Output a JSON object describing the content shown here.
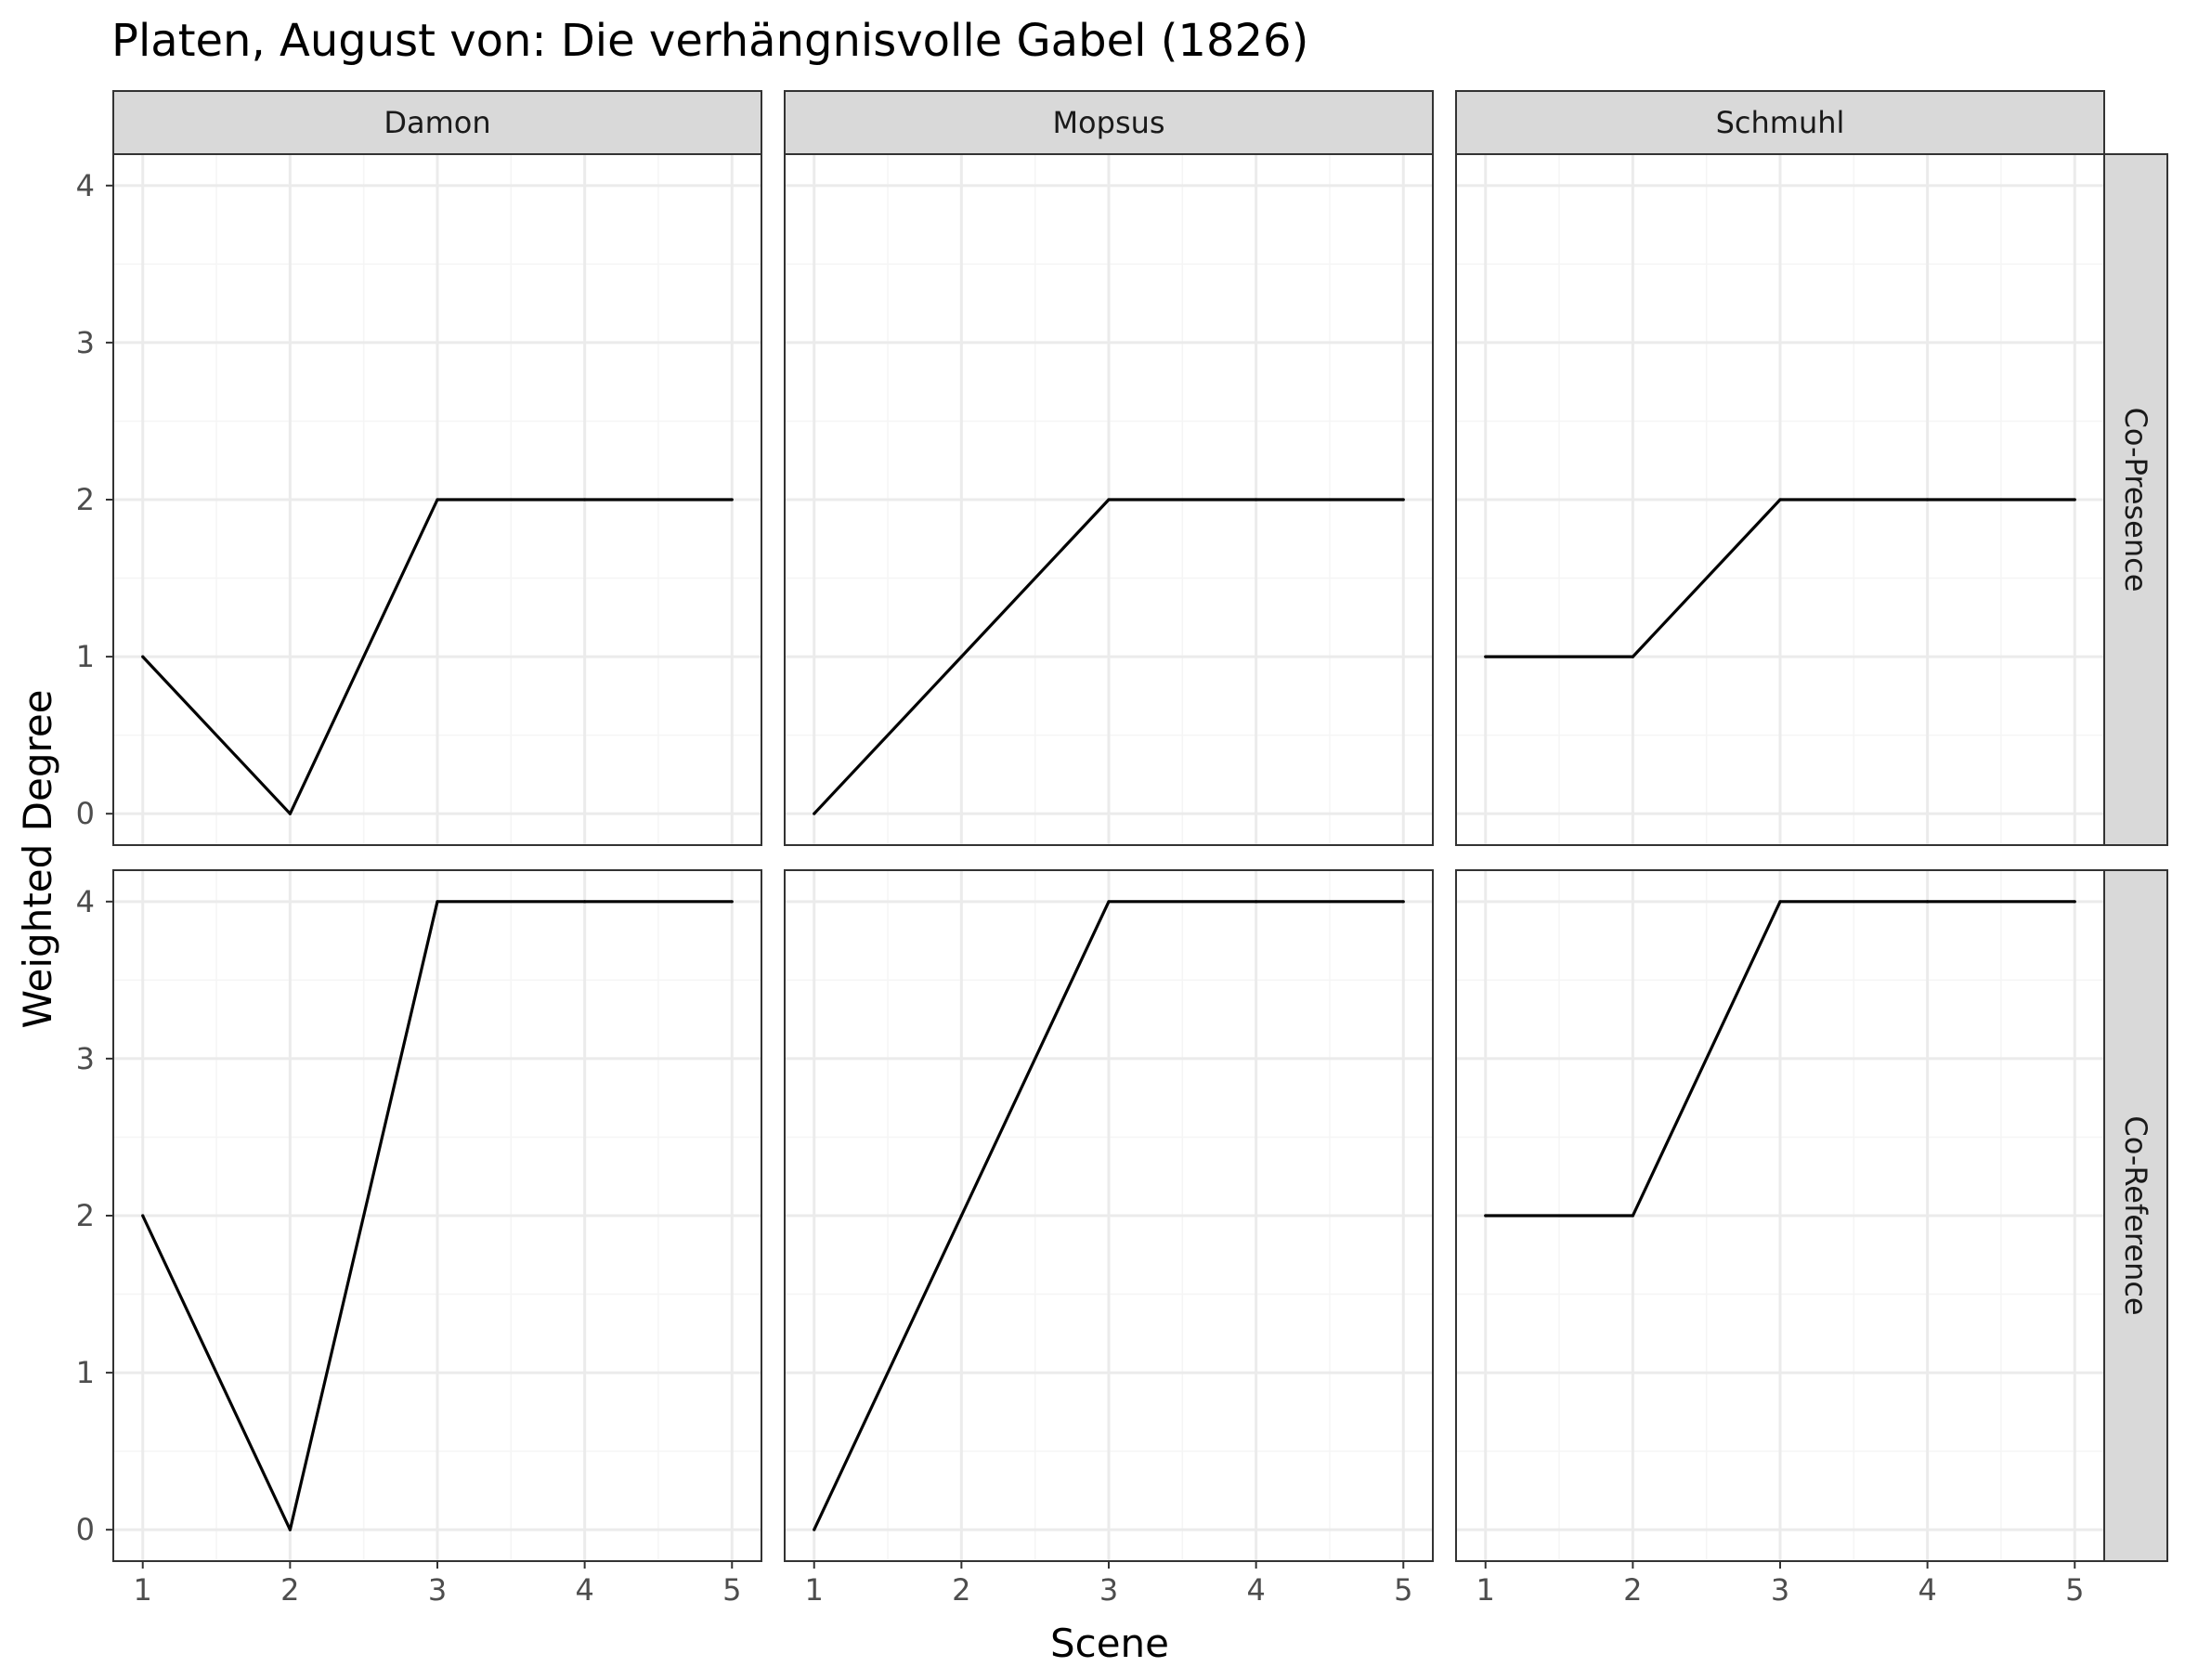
{
  "chart_data": {
    "type": "line",
    "title": "Platen, August von: Die verhängnisvolle Gabel (1826)",
    "xlabel": "Scene",
    "ylabel": "Weighted Degree",
    "x": [
      1,
      2,
      3,
      4,
      5
    ],
    "xlim": [
      0.8,
      5.2
    ],
    "ylim": [
      -0.2,
      4.2
    ],
    "xticks": [
      "1",
      "2",
      "3",
      "4",
      "5"
    ],
    "yticks": [
      "0",
      "1",
      "2",
      "3",
      "4"
    ],
    "grid": true,
    "legend": "none",
    "columns": [
      "Damon",
      "Mopsus",
      "Schmuhl"
    ],
    "rows": [
      "Co-Presence",
      "Co-Reference"
    ],
    "panels": [
      {
        "row": "Co-Presence",
        "column": "Damon",
        "values": [
          1,
          0,
          2,
          2,
          2
        ]
      },
      {
        "row": "Co-Presence",
        "column": "Mopsus",
        "values": [
          0,
          1,
          2,
          2,
          2
        ]
      },
      {
        "row": "Co-Presence",
        "column": "Schmuhl",
        "values": [
          1,
          1,
          2,
          2,
          2
        ]
      },
      {
        "row": "Co-Reference",
        "column": "Damon",
        "values": [
          2,
          0,
          4,
          4,
          4
        ]
      },
      {
        "row": "Co-Reference",
        "column": "Mopsus",
        "values": [
          0,
          2,
          4,
          4,
          4
        ]
      },
      {
        "row": "Co-Reference",
        "column": "Schmuhl",
        "values": [
          2,
          2,
          4,
          4,
          4
        ]
      }
    ]
  },
  "colors": {
    "line": "#000000",
    "strip_fill": "#d9d9d9",
    "grid_major": "#ebebeb",
    "grid_minor": "#f5f5f5",
    "panel_border": "#333333"
  }
}
